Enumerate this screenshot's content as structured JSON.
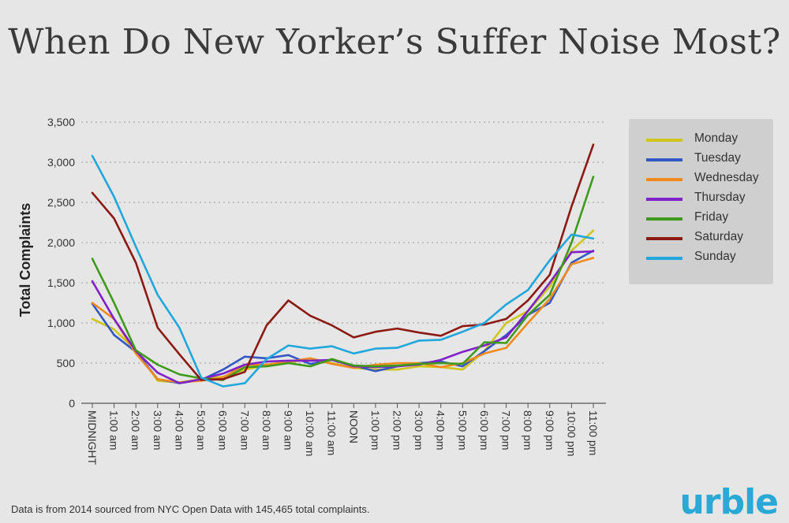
{
  "chart_data": {
    "type": "line",
    "title": "When Do New Yorker’s Suffer Noise Most?",
    "xlabel": "",
    "ylabel": "Total Complaints",
    "ylim": [
      0,
      3500
    ],
    "yticks": [
      "0",
      "500",
      "1,000",
      "1,500",
      "2,000",
      "2,500",
      "3,000",
      "3,500"
    ],
    "ytick_values": [
      0,
      500,
      1000,
      1500,
      2000,
      2500,
      3000,
      3500
    ],
    "grid": true,
    "legend_position": "right",
    "categories": [
      "MIDNIGHT",
      "1:00 am",
      "2:00 am",
      "3:00 am",
      "4:00 am",
      "5:00 am",
      "6:00 am",
      "7:00 am",
      "8:00 am",
      "9:00 am",
      "10:00 am",
      "11:00 am",
      "NOON",
      "1:00 pm",
      "2:00 pm",
      "3:00 pm",
      "4:00 pm",
      "5:00 pm",
      "6:00 pm",
      "7:00 pm",
      "8:00 pm",
      "9:00 pm",
      "10:00 pm",
      "11:00 pm"
    ],
    "series": [
      {
        "name": "Monday",
        "color": "#cfc51c",
        "values": [
          1050,
          920,
          660,
          280,
          260,
          300,
          330,
          420,
          470,
          500,
          560,
          500,
          440,
          420,
          420,
          460,
          450,
          420,
          650,
          1000,
          1150,
          1450,
          1900,
          2150
        ]
      },
      {
        "name": "Tuesday",
        "color": "#3357c4",
        "values": [
          1240,
          850,
          640,
          300,
          250,
          290,
          420,
          580,
          560,
          600,
          490,
          540,
          470,
          400,
          460,
          500,
          520,
          460,
          650,
          850,
          1100,
          1250,
          1750,
          1900
        ]
      },
      {
        "name": "Wednesday",
        "color": "#f08a1c",
        "values": [
          1250,
          1050,
          620,
          300,
          260,
          280,
          320,
          480,
          480,
          520,
          560,
          490,
          440,
          480,
          500,
          500,
          450,
          500,
          620,
          690,
          1000,
          1300,
          1730,
          1810
        ]
      },
      {
        "name": "Thursday",
        "color": "#8020c8",
        "values": [
          1520,
          1050,
          650,
          380,
          250,
          300,
          370,
          480,
          520,
          530,
          530,
          540,
          460,
          450,
          460,
          480,
          540,
          640,
          720,
          820,
          1150,
          1500,
          1880,
          1890
        ]
      },
      {
        "name": "Friday",
        "color": "#3f9a1c",
        "values": [
          1800,
          1250,
          660,
          480,
          360,
          310,
          290,
          450,
          460,
          500,
          460,
          550,
          470,
          460,
          470,
          490,
          500,
          490,
          760,
          750,
          1100,
          1350,
          2000,
          2820
        ]
      },
      {
        "name": "Saturday",
        "color": "#8c1a14",
        "values": [
          2620,
          2300,
          1750,
          940,
          610,
          290,
          300,
          390,
          970,
          1280,
          1090,
          970,
          820,
          890,
          930,
          880,
          840,
          960,
          980,
          1050,
          1280,
          1600,
          2450,
          3220
        ]
      },
      {
        "name": "Sunday",
        "color": "#21a7dc",
        "values": [
          3080,
          2570,
          1950,
          1350,
          940,
          320,
          210,
          250,
          550,
          720,
          680,
          710,
          620,
          680,
          690,
          780,
          790,
          890,
          1000,
          1230,
          1410,
          1780,
          2100,
          2050
        ]
      }
    ]
  },
  "footnote": "Data is from 2014 sourced from NYC Open Data with 145,465 total complaints.",
  "brand": "urble"
}
